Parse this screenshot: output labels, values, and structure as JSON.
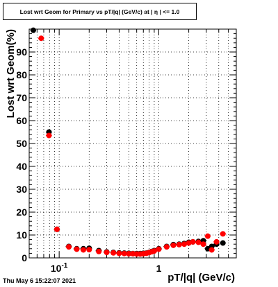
{
  "timestamp": "Thu May  6 15:22:07 2021",
  "chart_data": {
    "type": "scatter",
    "title": "Lost wrt Geom for Primary vs pT/|q| (GeV/c) at | η | <= 1.0",
    "xlabel": "pT/|q| (GeV/c)",
    "ylabel": "Lost wrt Geom(%)",
    "xscale": "log",
    "xlim": [
      0.05,
      6.0
    ],
    "ylim": [
      0,
      100
    ],
    "yticks": [
      0,
      10,
      20,
      30,
      40,
      50,
      60,
      70,
      80,
      90
    ],
    "xtick_labels": [
      {
        "value": 0.1,
        "base": "10",
        "exp": "-1"
      },
      {
        "value": 1,
        "base": "1",
        "exp": ""
      }
    ],
    "grid": true,
    "colors": {
      "series_black": "#000000",
      "series_red": "#ff0000"
    },
    "series": [
      {
        "color": "black",
        "x": [
          0.055,
          0.079,
          0.095,
          0.125,
          0.15,
          0.175,
          0.2,
          0.25,
          0.3,
          0.35,
          0.4,
          0.45,
          0.5,
          0.55,
          0.6,
          0.65,
          0.7,
          0.75,
          0.8,
          0.85,
          0.9,
          1.0,
          1.2,
          1.4,
          1.6,
          1.8,
          2.0,
          2.2,
          2.5,
          2.8,
          3.1,
          3.4,
          3.8,
          4.4
        ],
        "y": [
          99.5,
          55,
          12.5,
          5,
          4,
          4,
          4.2,
          3.2,
          2.6,
          2.4,
          2.2,
          2.1,
          2.0,
          1.9,
          1.9,
          1.9,
          2.0,
          2.1,
          2.4,
          2.8,
          3.2,
          4.0,
          5.0,
          5.8,
          6.0,
          6.3,
          6.8,
          7.0,
          7.2,
          7.5,
          4.0,
          5.0,
          6.0,
          6.5
        ]
      },
      {
        "color": "red",
        "x": [
          0.066,
          0.079,
          0.095,
          0.125,
          0.15,
          0.175,
          0.2,
          0.25,
          0.3,
          0.35,
          0.4,
          0.45,
          0.5,
          0.55,
          0.6,
          0.65,
          0.7,
          0.75,
          0.8,
          0.85,
          0.9,
          1.0,
          1.2,
          1.4,
          1.6,
          1.8,
          2.0,
          2.2,
          2.5,
          2.8,
          3.1,
          3.4,
          3.8,
          4.4
        ],
        "y": [
          96,
          53.5,
          12.5,
          4.8,
          3.8,
          3.5,
          3.6,
          2.8,
          2.4,
          2.2,
          2.0,
          1.9,
          1.8,
          1.8,
          1.7,
          1.7,
          1.8,
          2.0,
          2.3,
          2.7,
          3.0,
          3.8,
          4.8,
          5.5,
          5.8,
          6.0,
          6.5,
          7.0,
          6.8,
          6.0,
          9.5,
          3.5,
          7.0,
          10.5
        ]
      }
    ]
  }
}
